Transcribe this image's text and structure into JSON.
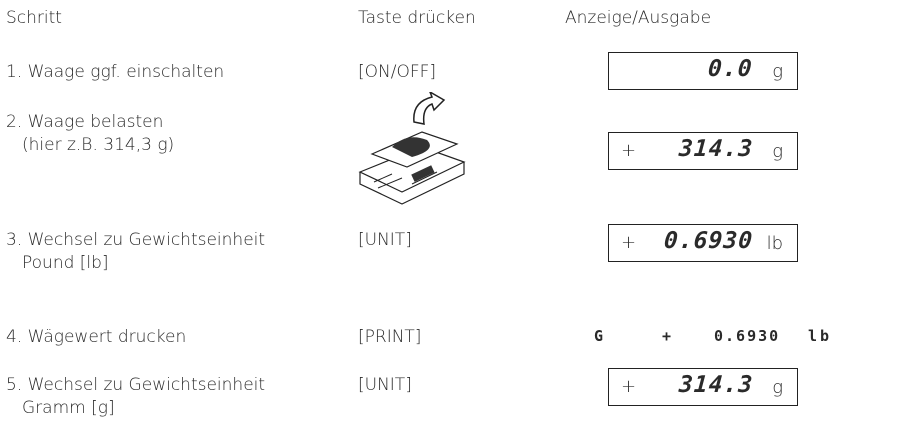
{
  "header": {
    "step": "Schritt",
    "key": "Taste drücken",
    "display": "Anzeige/Ausgabe"
  },
  "rows": [
    {
      "step": "1. Waage ggf. einschalten",
      "key": "[ON/OFF]",
      "display": {
        "value": "0.0",
        "unit": "g"
      }
    },
    {
      "step": "2. Waage belasten",
      "step_detail": "(hier z.B. 314,3 g)",
      "display": {
        "sign": "+",
        "value": "314.3",
        "unit": "g"
      }
    },
    {
      "step": "3. Wechsel zu Gewichtseinheit",
      "step_detail": "Pound [lb]",
      "key": "[UNIT]",
      "display": {
        "sign": "+",
        "value": "0.6930",
        "unit": "lb"
      }
    },
    {
      "step": "4. Wägewert drucken",
      "key": "[PRINT]",
      "printout": {
        "mode": "G",
        "sign": "+",
        "value": "0.6930",
        "unit": "lb"
      }
    },
    {
      "step": "5. Wechsel zu Gewichtseinheit",
      "step_detail": "Gramm [g]",
      "key": "[UNIT]",
      "display": {
        "sign": "+",
        "value": "314.3",
        "unit": "g"
      }
    }
  ]
}
